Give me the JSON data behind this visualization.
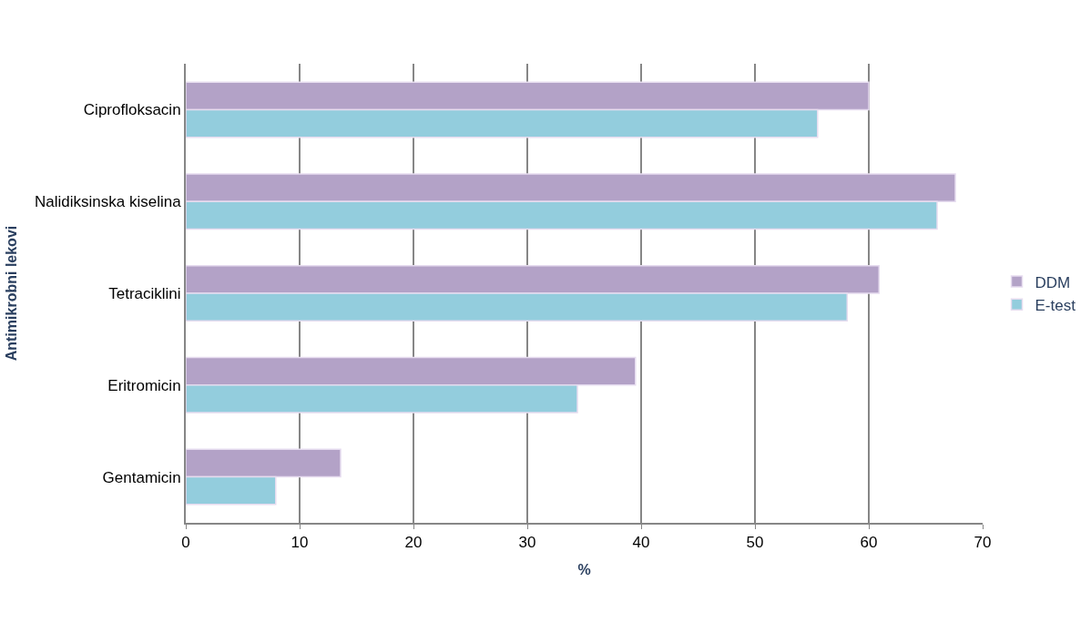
{
  "chart_data": {
    "type": "bar",
    "orientation": "horizontal",
    "xlabel": "%",
    "ylabel": "Antimikrobni lekovi",
    "categories": [
      "Ciprofloksacin",
      "Nalidiksinska kiselina",
      "Tetraciklini",
      "Eritromicin",
      "Gentamicin"
    ],
    "series": [
      {
        "name": "DDM",
        "color": "#b3a2c7",
        "values": [
          60,
          67.6,
          60.9,
          39.5,
          13.6
        ]
      },
      {
        "name": "E-test",
        "color": "#93cddd",
        "values": [
          55.5,
          66,
          58.1,
          34.4,
          7.9
        ]
      }
    ],
    "xlim": [
      0,
      70
    ],
    "xticks": [
      0,
      10,
      20,
      30,
      40,
      50,
      60,
      70
    ],
    "grid": "x",
    "legend": "right"
  }
}
